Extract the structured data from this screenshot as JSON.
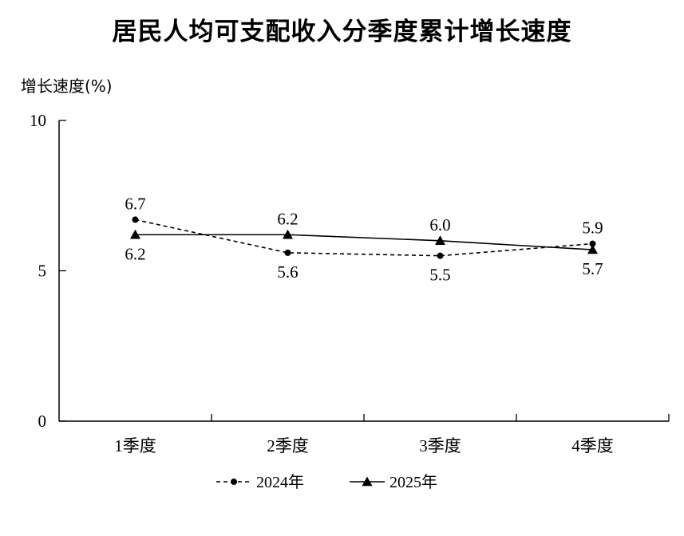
{
  "chart_data": {
    "type": "line",
    "title": "居民人均可支配收入分季度累计增长速度",
    "ylabel": "增长速度(%)",
    "xlabel": "",
    "ylim": [
      0,
      10
    ],
    "yticks": [
      0,
      5,
      10
    ],
    "grid": false,
    "legend_position": "bottom",
    "categories": [
      "1季度",
      "2季度",
      "3季度",
      "4季度"
    ],
    "series": [
      {
        "name": "2024年",
        "values": [
          6.7,
          5.6,
          5.5,
          5.9
        ],
        "labels": [
          "6.7",
          "5.6",
          "5.5",
          "5.9"
        ],
        "label_side": [
          "above",
          "below",
          "below",
          "above"
        ],
        "style": "dashed",
        "marker": "circle",
        "color": "#000000"
      },
      {
        "name": "2025年",
        "values": [
          6.2,
          6.2,
          6.0,
          5.7
        ],
        "labels": [
          "6.2",
          "6.2",
          "6.0",
          "5.7"
        ],
        "label_side": [
          "below",
          "above",
          "above",
          "below"
        ],
        "style": "solid",
        "marker": "triangle",
        "color": "#000000"
      }
    ]
  }
}
